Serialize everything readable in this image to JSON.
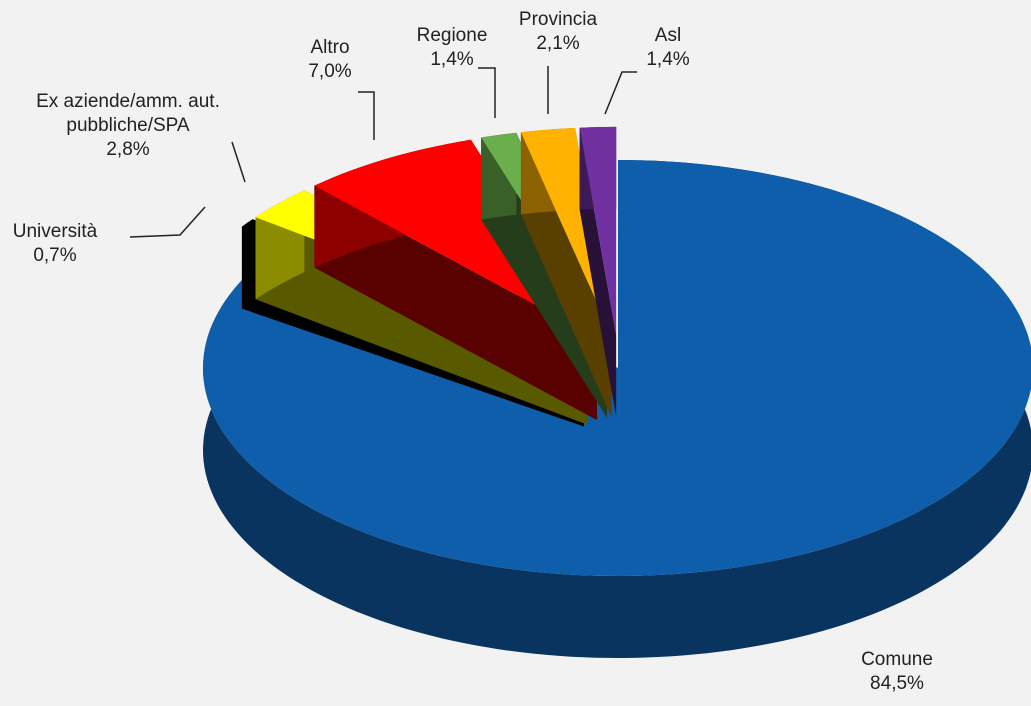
{
  "chart_data": {
    "type": "pie",
    "exploded": true,
    "three_d": true,
    "categories": [
      "Comune",
      "Università",
      "Ex aziende/amm. aut. pubbliche/SPA",
      "Altro",
      "Regione",
      "Provincia",
      "Asl"
    ],
    "values": [
      84.5,
      0.7,
      2.8,
      7.0,
      1.4,
      2.1,
      1.4
    ],
    "value_labels": [
      "84,5%",
      "0,7%",
      "2,8%",
      "7,0%",
      "1,4%",
      "2,1%",
      "1,4%"
    ],
    "colors": [
      "#0f5eac",
      "#000000",
      "#ffff00",
      "#ff0000",
      "#6aaf4c",
      "#ffb300",
      "#7030a0"
    ]
  }
}
